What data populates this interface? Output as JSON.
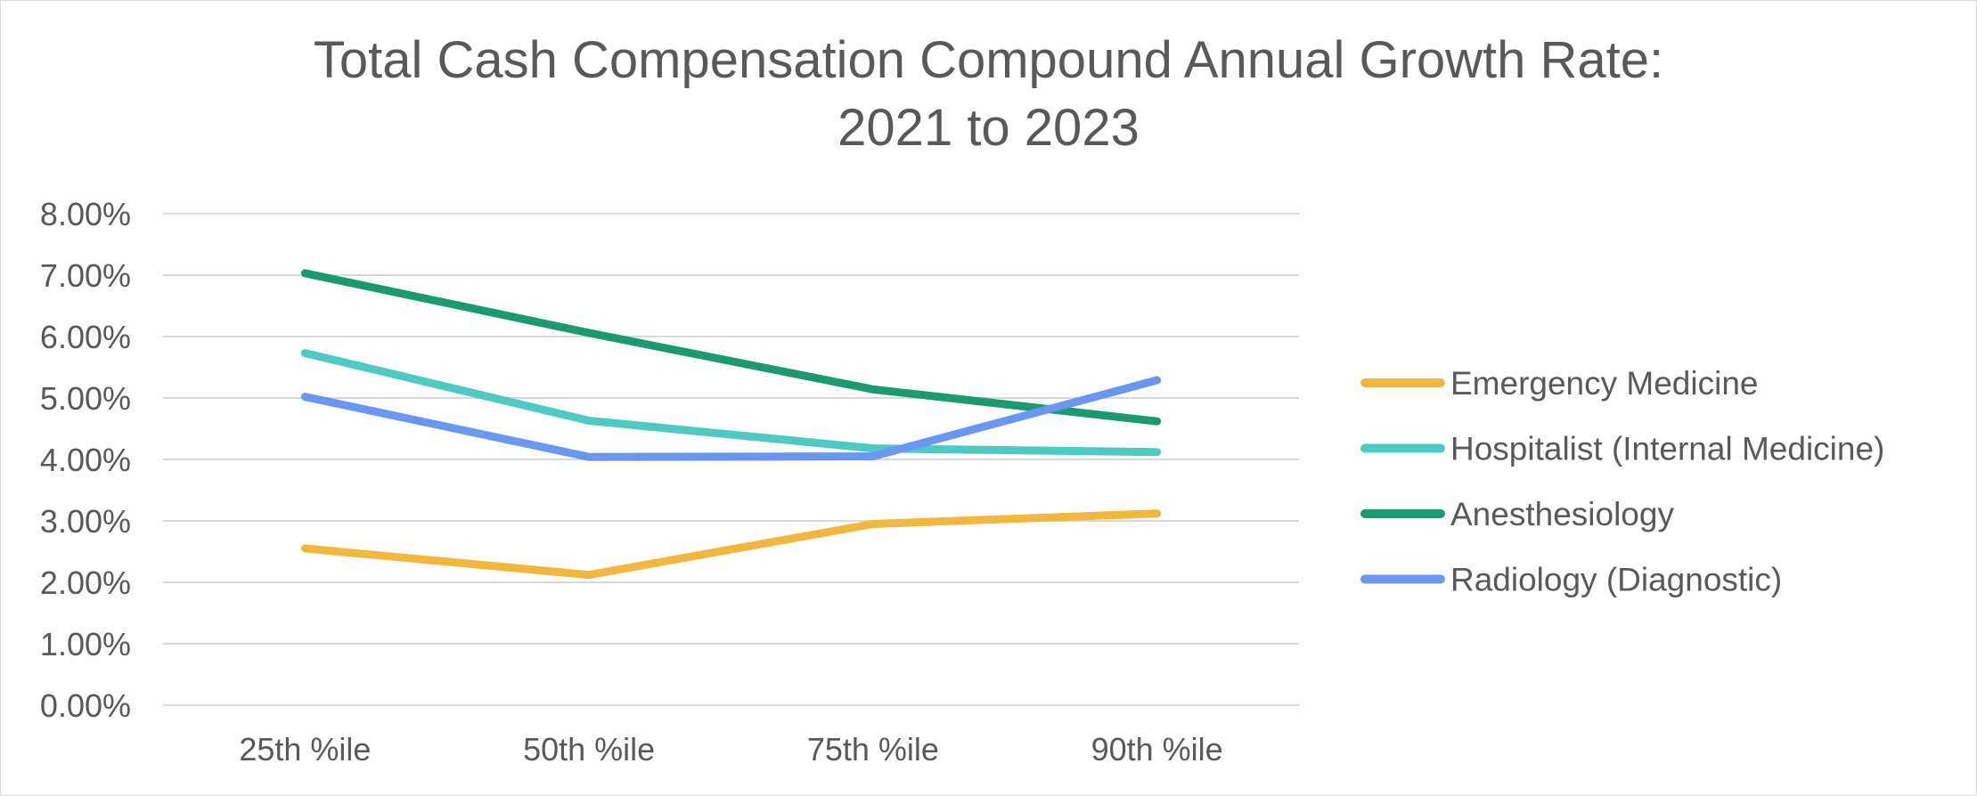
{
  "chart_data": {
    "type": "line",
    "title_line1": "Total Cash Compensation Compound Annual Growth Rate:",
    "title_line2": "2021 to 2023",
    "categories": [
      "25th %ile",
      "50th %ile",
      "75th %ile",
      "90th %ile"
    ],
    "ylim": [
      0,
      8
    ],
    "y_ticks": [
      "0.00%",
      "1.00%",
      "2.00%",
      "3.00%",
      "4.00%",
      "5.00%",
      "6.00%",
      "7.00%",
      "8.00%"
    ],
    "grid": true,
    "legend_position": "right",
    "series": [
      {
        "name": "Emergency Medicine",
        "color": "#f2b73f",
        "values": [
          2.55,
          2.12,
          2.95,
          3.12
        ]
      },
      {
        "name": "Hospitalist (Internal Medicine)",
        "color": "#4ec9c4",
        "values": [
          5.73,
          4.63,
          4.18,
          4.12
        ]
      },
      {
        "name": "Anesthesiology",
        "color": "#1b9a72",
        "values": [
          7.03,
          6.06,
          5.14,
          4.62
        ]
      },
      {
        "name": "Radiology (Diagnostic)",
        "color": "#6a97f2",
        "values": [
          5.02,
          4.04,
          4.05,
          5.29
        ]
      }
    ]
  }
}
